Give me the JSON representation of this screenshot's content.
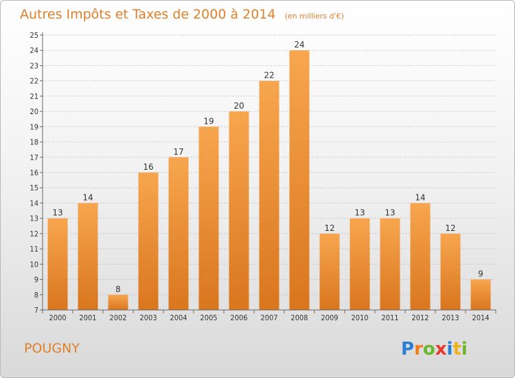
{
  "chart_data": {
    "type": "bar",
    "title": "Autres Impôts et Taxes de 2000 à 2014",
    "subtitle": "(en milliers d'€)",
    "categories": [
      "2000",
      "2001",
      "2002",
      "2003",
      "2004",
      "2005",
      "2006",
      "2007",
      "2008",
      "2009",
      "2010",
      "2011",
      "2012",
      "2013",
      "2014"
    ],
    "values": [
      13,
      14,
      8,
      16,
      17,
      19,
      20,
      22,
      24,
      12,
      13,
      13,
      14,
      12,
      9
    ],
    "ylim": [
      7,
      25
    ],
    "yticks": [
      7,
      8,
      9,
      10,
      11,
      12,
      13,
      14,
      15,
      16,
      17,
      18,
      19,
      20,
      21,
      22,
      23,
      24,
      25
    ],
    "grid": true,
    "colors": {
      "bar_light": "#f7a64f",
      "bar_dark": "#d9761e",
      "title": "#e07f2a"
    }
  },
  "commune": "POUGNY",
  "logo": {
    "letters": [
      "P",
      "r",
      "o",
      "x",
      "i",
      "t",
      "i"
    ],
    "colors": [
      "#2a7fd4",
      "#f07d1a",
      "#6cb52d",
      "#e8372a",
      "#2a7fd4",
      "#f0b21a",
      "#6cb52d"
    ]
  }
}
